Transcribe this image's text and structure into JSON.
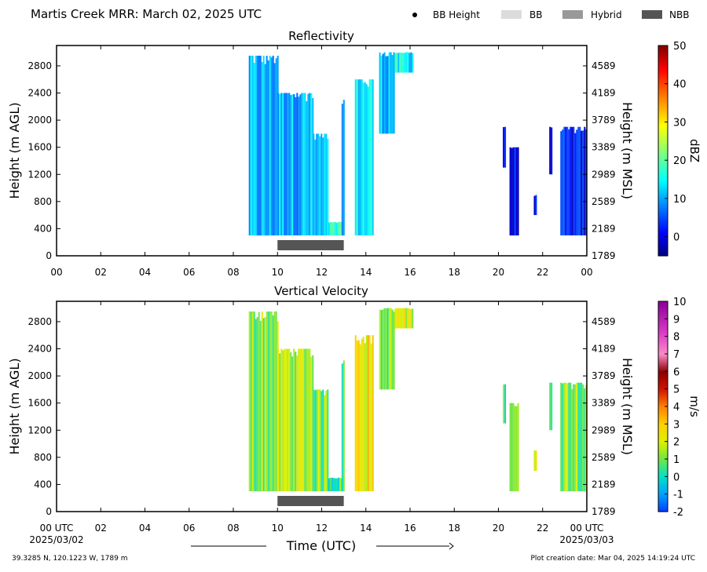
{
  "header": {
    "title": "Martis Creek MRR:  March 02, 2025 UTC",
    "legend": [
      {
        "label": "BB Height",
        "marker": "dot",
        "color": "#000000"
      },
      {
        "label": "BB",
        "marker": "box",
        "color": "#dcdcdc"
      },
      {
        "label": "Hybrid",
        "marker": "box",
        "color": "#999999"
      },
      {
        "label": "NBB",
        "marker": "box",
        "color": "#555555"
      }
    ]
  },
  "footer": {
    "location": "39.3285 N, 120.1223 W, 1789 m",
    "created": "Plot creation date: Mar 04, 2025 14:19:24 UTC",
    "time_axis_label": "Time (UTC)",
    "start_date": "2025/03/02",
    "end_date": "2025/03/03"
  },
  "chart_data": [
    {
      "type": "heatmap",
      "title": "Reflectivity",
      "ylabel": "Height (m AGL)",
      "ylabel_right": "Height (m MSL)",
      "x_ticks": [
        "00",
        "02",
        "04",
        "06",
        "08",
        "10",
        "12",
        "14",
        "16",
        "18",
        "20",
        "22",
        "00"
      ],
      "xlim_hours": [
        0,
        24
      ],
      "ylim": [
        0,
        3100
      ],
      "y_ticks": [
        0,
        400,
        800,
        1200,
        1600,
        2000,
        2400,
        2800
      ],
      "y_ticks_right": [
        "1789",
        "2189",
        "2589",
        "2989",
        "3389",
        "3789",
        "4189",
        "4589"
      ],
      "colorbar": {
        "label": "dBZ",
        "range": [
          -5,
          50
        ],
        "ticks": [
          "0",
          "10",
          "20",
          "30",
          "40",
          "50"
        ],
        "tick_values": [
          0,
          10,
          20,
          30,
          40,
          50
        ],
        "palette": "jet"
      },
      "regions": [
        {
          "t0": 8.7,
          "t1": 10.0,
          "h0": 300,
          "h1": 2950,
          "v": 10
        },
        {
          "t0": 10.0,
          "t1": 11.6,
          "h0": 300,
          "h1": 2400,
          "v": 11
        },
        {
          "t0": 11.6,
          "t1": 12.3,
          "h0": 300,
          "h1": 1800,
          "v": 10
        },
        {
          "t0": 12.3,
          "t1": 13.0,
          "h0": 300,
          "h1": 500,
          "v": 16
        },
        {
          "t0": 12.9,
          "t1": 13.0,
          "h0": 300,
          "h1": 2300,
          "v": 8
        },
        {
          "t0": 13.5,
          "t1": 14.3,
          "h0": 300,
          "h1": 2600,
          "v": 14
        },
        {
          "t0": 14.6,
          "t1": 15.3,
          "h0": 1800,
          "h1": 3000,
          "v": 12
        },
        {
          "t0": 15.3,
          "t1": 16.1,
          "h0": 2700,
          "h1": 3000,
          "v": 14
        },
        {
          "t0": 20.2,
          "t1": 20.3,
          "h0": 1300,
          "h1": 1900,
          "v": 2
        },
        {
          "t0": 20.5,
          "t1": 20.9,
          "h0": 300,
          "h1": 1600,
          "v": 0
        },
        {
          "t0": 21.6,
          "t1": 21.7,
          "h0": 600,
          "h1": 900,
          "v": 0
        },
        {
          "t0": 22.3,
          "t1": 22.4,
          "h0": 1200,
          "h1": 1900,
          "v": 2
        },
        {
          "t0": 22.8,
          "t1": 24.0,
          "h0": 300,
          "h1": 1900,
          "v": 1
        }
      ],
      "bb_bars": [
        {
          "t0": 10.0,
          "t1": 13.0,
          "class": "NBB",
          "color": "#555555"
        }
      ]
    },
    {
      "type": "heatmap",
      "title": "Vertical Velocity",
      "ylabel": "Height (m AGL)",
      "ylabel_right": "Height (m MSL)",
      "x_ticks": [
        "00 UTC",
        "02",
        "04",
        "06",
        "08",
        "10",
        "12",
        "14",
        "16",
        "18",
        "20",
        "22",
        "00 UTC"
      ],
      "xlim_hours": [
        0,
        24
      ],
      "ylim": [
        0,
        3100
      ],
      "y_ticks": [
        0,
        400,
        800,
        1200,
        1600,
        2000,
        2400,
        2800
      ],
      "y_ticks_right": [
        "1789",
        "2189",
        "2589",
        "2989",
        "3389",
        "3789",
        "4189",
        "4589"
      ],
      "colorbar": {
        "label": "m/s",
        "range": [
          -2,
          10
        ],
        "ticks": [
          "-2",
          "-1",
          "0",
          "1",
          "2",
          "3",
          "4",
          "5",
          "6",
          "7",
          "8",
          "9",
          "10"
        ],
        "tick_values": [
          -2,
          -1,
          0,
          1,
          2,
          3,
          4,
          5,
          6,
          7,
          8,
          9,
          10
        ],
        "palette": "velocity"
      },
      "regions": [
        {
          "t0": 8.7,
          "t1": 10.0,
          "h0": 300,
          "h1": 2950,
          "v": 1.2
        },
        {
          "t0": 10.0,
          "t1": 11.6,
          "h0": 300,
          "h1": 2400,
          "v": 1.6
        },
        {
          "t0": 11.6,
          "t1": 12.3,
          "h0": 300,
          "h1": 1800,
          "v": 1.0
        },
        {
          "t0": 12.3,
          "t1": 13.0,
          "h0": 300,
          "h1": 500,
          "v": 0.6
        },
        {
          "t0": 12.9,
          "t1": 13.0,
          "h0": 300,
          "h1": 2300,
          "v": 0.8
        },
        {
          "t0": 13.5,
          "t1": 14.3,
          "h0": 300,
          "h1": 2600,
          "v": 2.6
        },
        {
          "t0": 14.6,
          "t1": 15.3,
          "h0": 1800,
          "h1": 3000,
          "v": 1.0
        },
        {
          "t0": 15.3,
          "t1": 16.1,
          "h0": 2700,
          "h1": 3000,
          "v": 2.0
        },
        {
          "t0": 20.2,
          "t1": 20.3,
          "h0": 1300,
          "h1": 1900,
          "v": 0.8
        },
        {
          "t0": 20.5,
          "t1": 20.9,
          "h0": 300,
          "h1": 1600,
          "v": 1.5
        },
        {
          "t0": 21.6,
          "t1": 21.7,
          "h0": 600,
          "h1": 900,
          "v": 1.5
        },
        {
          "t0": 22.3,
          "t1": 22.4,
          "h0": 1200,
          "h1": 1900,
          "v": 1.2
        },
        {
          "t0": 22.8,
          "t1": 24.0,
          "h0": 300,
          "h1": 1900,
          "v": 1.4
        }
      ],
      "bb_bars": [
        {
          "t0": 10.0,
          "t1": 13.0,
          "class": "NBB",
          "color": "#555555"
        }
      ]
    }
  ]
}
